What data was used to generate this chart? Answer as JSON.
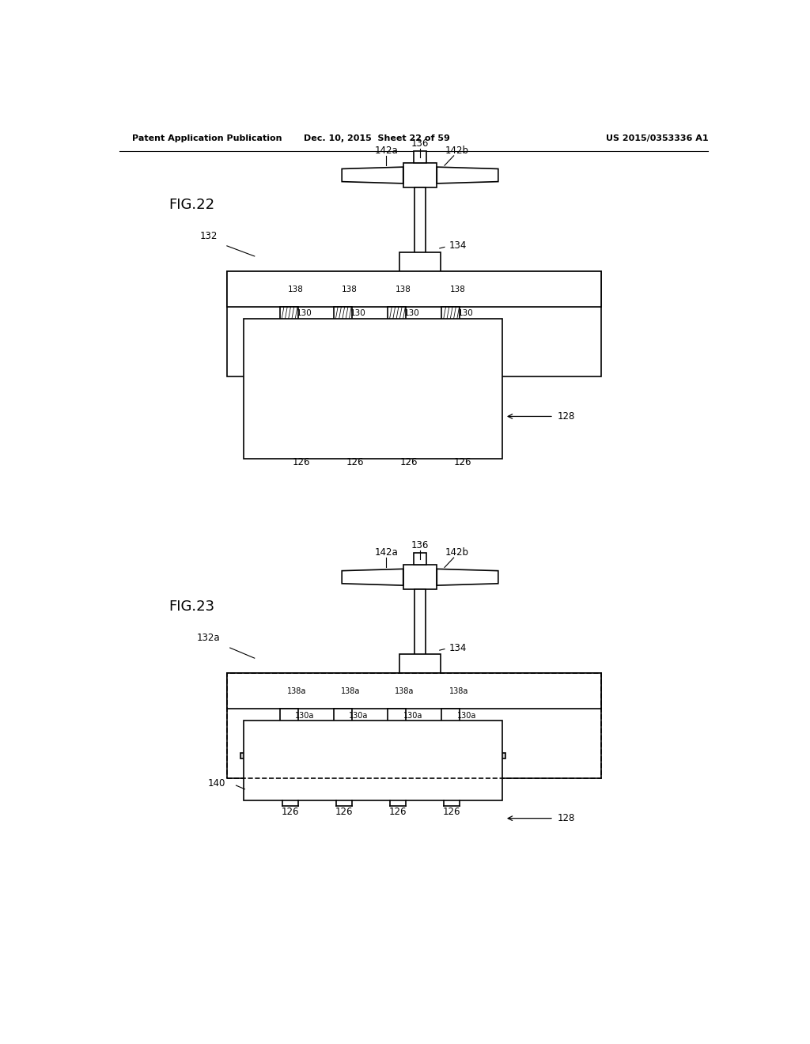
{
  "header_left": "Patent Application Publication",
  "header_mid": "Dec. 10, 2015  Sheet 22 of 59",
  "header_right": "US 2015/0353336 A1",
  "fig22_label": "FIG.22",
  "fig23_label": "FIG.23",
  "bg_color": "#ffffff",
  "line_color": "#000000"
}
